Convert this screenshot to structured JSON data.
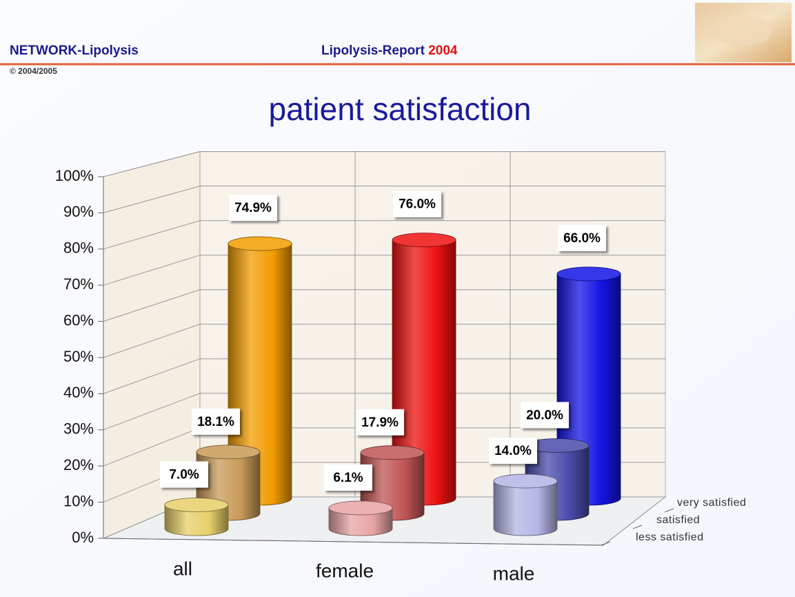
{
  "header": {
    "brand": "NETWORK-Lipolysis",
    "report": "Lipolysis-Report",
    "year": "2004",
    "copyright": "© 2004/2005"
  },
  "chart_data": {
    "type": "bar3d",
    "title": "patient satisfaction",
    "categories": [
      "all",
      "female",
      "male"
    ],
    "series": [
      {
        "name": "less satisfied",
        "colors": [
          "#e8cf68",
          "#e8a4a4",
          "#b4b4e6"
        ],
        "values": [
          7.0,
          6.1,
          14.0
        ],
        "value_labels": [
          "7.0%",
          "6.1%",
          "14.0%"
        ]
      },
      {
        "name": "satisfied",
        "colors": [
          "#c89a58",
          "#c05454",
          "#4a4aac"
        ],
        "values": [
          18.1,
          17.9,
          20.0
        ],
        "value_labels": [
          "18.1%",
          "17.9%",
          "20.0%"
        ]
      },
      {
        "name": "very satisfied",
        "colors": [
          "#f29c00",
          "#ee1010",
          "#1414e6"
        ],
        "values": [
          74.9,
          76.0,
          66.0
        ],
        "value_labels": [
          "74.9%",
          "76.0%",
          "66.0%"
        ]
      }
    ],
    "ylim": [
      0,
      100
    ],
    "yticks": [
      {
        "value": 0,
        "label": "0%"
      },
      {
        "value": 10,
        "label": "10%"
      },
      {
        "value": 20,
        "label": "20%"
      },
      {
        "value": 30,
        "label": "30%"
      },
      {
        "value": 40,
        "label": "40%"
      },
      {
        "value": 50,
        "label": "50%"
      },
      {
        "value": 60,
        "label": "60%"
      },
      {
        "value": 70,
        "label": "70%"
      },
      {
        "value": 80,
        "label": "80%"
      },
      {
        "value": 90,
        "label": "90%"
      },
      {
        "value": 100,
        "label": "100%"
      }
    ],
    "grid": true
  }
}
